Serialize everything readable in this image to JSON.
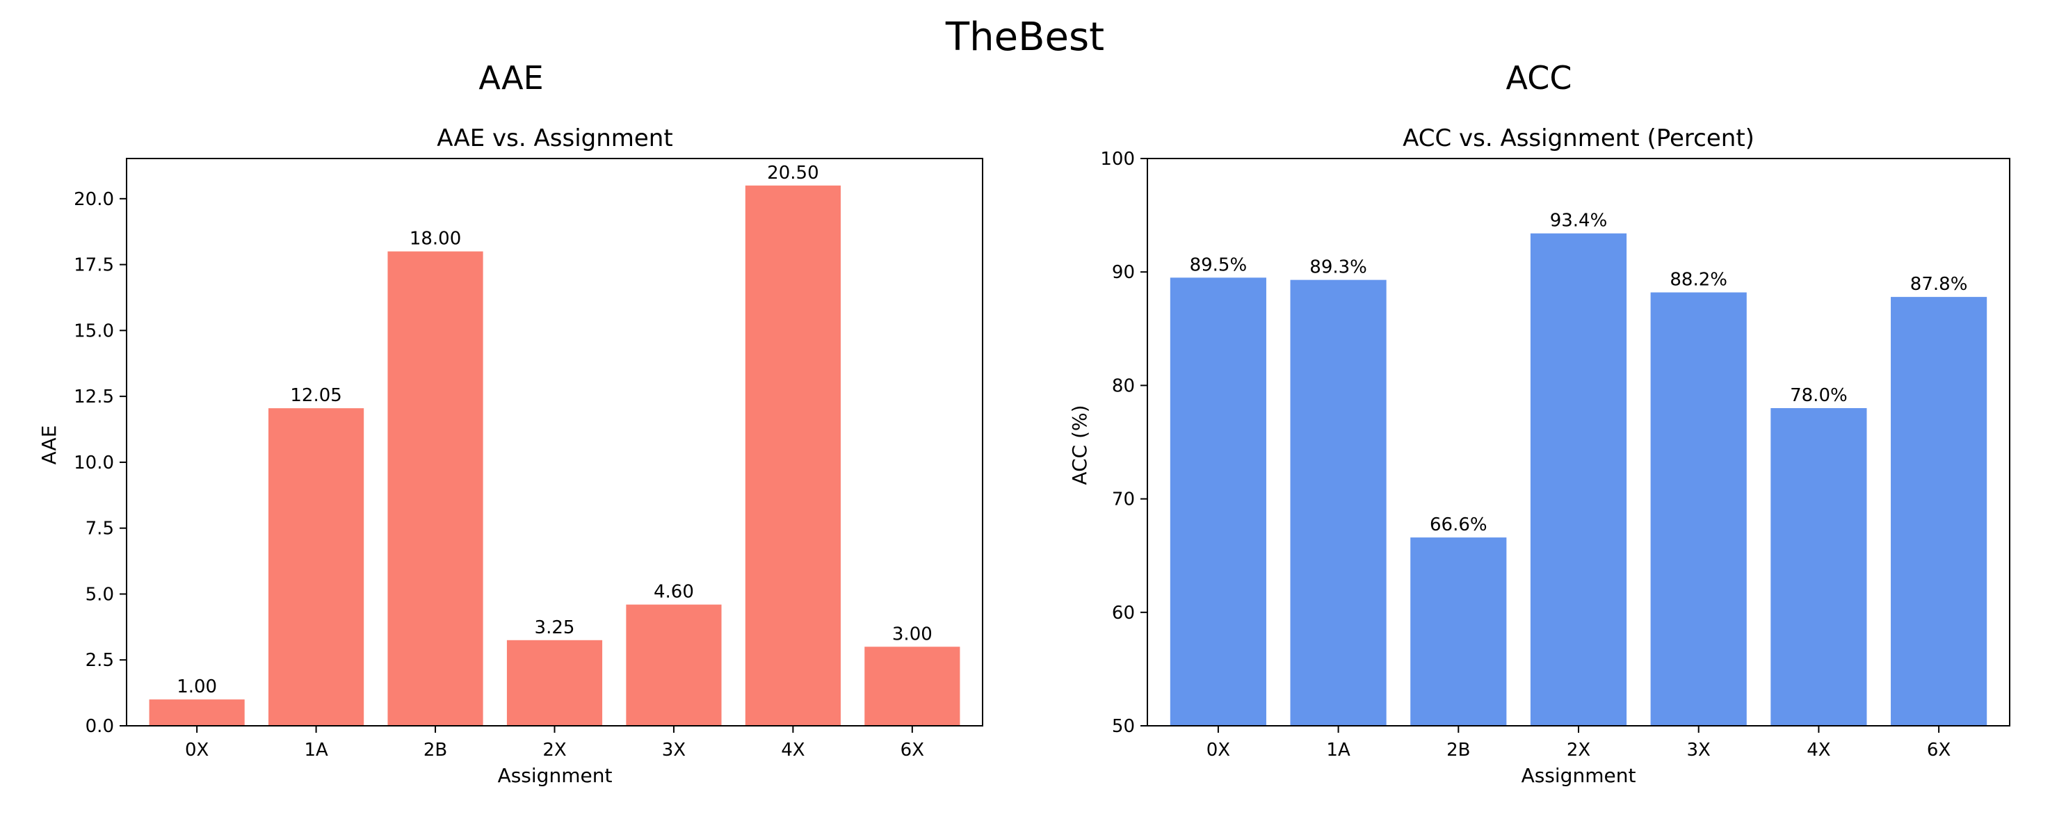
{
  "figure": {
    "suptitle": "TheBest"
  },
  "chart_data": [
    {
      "type": "bar",
      "panel_title": "AAE",
      "title": "AAE vs. Assignment",
      "xlabel": "Assignment",
      "ylabel": "AAE",
      "categories": [
        "0X",
        "1A",
        "2B",
        "2X",
        "3X",
        "4X",
        "6X"
      ],
      "values": [
        1.0,
        12.05,
        18.0,
        3.25,
        4.6,
        20.5,
        3.0
      ],
      "value_labels": [
        "1.00",
        "12.05",
        "18.00",
        "3.25",
        "4.60",
        "20.50",
        "3.00"
      ],
      "ylim": [
        0,
        21.525
      ],
      "yticks": [
        0.0,
        2.5,
        5.0,
        7.5,
        10.0,
        12.5,
        15.0,
        17.5,
        20.0
      ],
      "ytick_labels": [
        "0.0",
        "2.5",
        "5.0",
        "7.5",
        "10.0",
        "12.5",
        "15.0",
        "17.5",
        "20.0"
      ],
      "color": "#fa8072",
      "grid": false
    },
    {
      "type": "bar",
      "panel_title": "ACC",
      "title": "ACC vs. Assignment (Percent)",
      "xlabel": "Assignment",
      "ylabel": "ACC (%)",
      "categories": [
        "0X",
        "1A",
        "2B",
        "2X",
        "3X",
        "4X",
        "6X"
      ],
      "values": [
        89.5,
        89.3,
        66.6,
        93.4,
        88.2,
        78.0,
        87.8
      ],
      "value_labels": [
        "89.5%",
        "89.3%",
        "66.6%",
        "93.4%",
        "88.2%",
        "78.0%",
        "87.8%"
      ],
      "ylim": [
        50,
        100
      ],
      "yticks": [
        50,
        60,
        70,
        80,
        90,
        100
      ],
      "ytick_labels": [
        "50",
        "60",
        "70",
        "80",
        "90",
        "100"
      ],
      "color": "#6495ed",
      "grid": false
    }
  ]
}
